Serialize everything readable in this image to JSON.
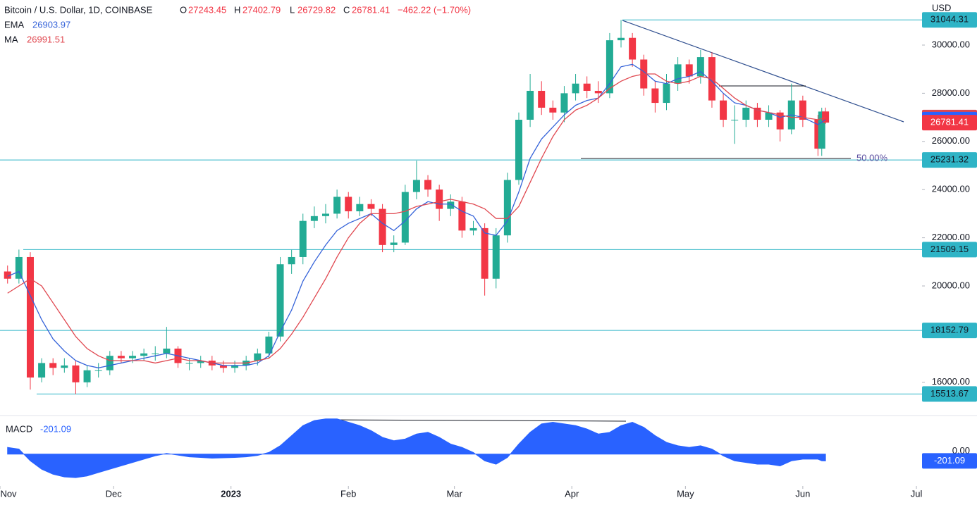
{
  "chart_data": [
    {
      "type": "candlestick",
      "title": "Bitcoin / U.S. Dollar, 1D, COINBASE",
      "ohlc_labels": [
        "O",
        "H",
        "L",
        "C"
      ],
      "change": "−462.22 (−1.70%)",
      "currency": "USD",
      "annotation": "50.00%",
      "colors": {
        "up": "#22ab94",
        "down": "#f23645"
      },
      "x": [
        2,
        5,
        8,
        11,
        14,
        17,
        20,
        23,
        26,
        29,
        32,
        35,
        38,
        41,
        44,
        47,
        50,
        53,
        56,
        59,
        62,
        65,
        68,
        71,
        74,
        77,
        80,
        83,
        86,
        89,
        92,
        95,
        98,
        101,
        104,
        107,
        110,
        113,
        116,
        119,
        122,
        125,
        128,
        131,
        134,
        137,
        140,
        143,
        146,
        149,
        152,
        155,
        158,
        161,
        164,
        167,
        170,
        173,
        176,
        179,
        182,
        185,
        188,
        191,
        194,
        197,
        200,
        203,
        206,
        209,
        212,
        216,
        217,
        218
      ],
      "open": [
        20600,
        20300,
        21200,
        16200,
        16800,
        16600,
        16700,
        16000,
        16500,
        16500,
        17100,
        17000,
        17100,
        17200,
        17200,
        17400,
        16800,
        16800,
        16900,
        16700,
        16600,
        16700,
        16900,
        17200,
        17900,
        20900,
        21200,
        22700,
        22900,
        23000,
        23700,
        23100,
        23400,
        23200,
        21700,
        21800,
        23900,
        24400,
        24000,
        23200,
        23500,
        22300,
        22400,
        20300,
        22100,
        24400,
        26900,
        28100,
        27400,
        27200,
        28000,
        28400,
        28100,
        28000,
        30200,
        30300,
        29400,
        28200,
        27600,
        28400,
        29200,
        28700,
        29500,
        27700,
        26900,
        26900,
        27400,
        26900,
        27200,
        26500,
        27700,
        26900,
        25700,
        27243.45
      ],
      "high": [
        20850,
        21509.15,
        21400,
        17000,
        17000,
        17000,
        16900,
        16700,
        16800,
        17300,
        17300,
        17300,
        17400,
        17500,
        18300,
        17500,
        17000,
        17100,
        17100,
        16900,
        16900,
        17100,
        17400,
        18100,
        21200,
        21500,
        23000,
        23300,
        23400,
        24000,
        23900,
        23700,
        23600,
        23400,
        22100,
        24200,
        25200,
        24600,
        24200,
        23800,
        23700,
        22700,
        22600,
        22400,
        24700,
        27200,
        28800,
        28500,
        27700,
        28300,
        28800,
        28700,
        28500,
        30500,
        31044.31,
        30500,
        29600,
        28500,
        28800,
        29500,
        29400,
        29800,
        29700,
        28000,
        27500,
        27700,
        27600,
        27500,
        27300,
        28400,
        27900,
        27100,
        27400,
        27402.79
      ],
      "low": [
        20100,
        20100,
        15700,
        16000,
        16300,
        16400,
        15513.67,
        15800,
        16200,
        16300,
        16800,
        16800,
        16900,
        16900,
        17000,
        16600,
        16500,
        16600,
        16500,
        16400,
        16400,
        16500,
        16700,
        17000,
        17700,
        20500,
        20900,
        22400,
        22600,
        22800,
        22800,
        22900,
        22900,
        21400,
        21400,
        21700,
        23600,
        23700,
        22700,
        22900,
        22000,
        22100,
        19600,
        19900,
        21800,
        24200,
        26600,
        27100,
        26900,
        26800,
        27700,
        27800,
        27600,
        27800,
        29900,
        29100,
        27900,
        27200,
        27300,
        28100,
        28400,
        28400,
        27400,
        26600,
        25900,
        26600,
        26600,
        26600,
        26000,
        26300,
        26600,
        25400,
        25400,
        26729.82
      ],
      "close": [
        20300,
        21200,
        16200,
        16800,
        16600,
        16700,
        16000,
        16500,
        16500,
        17100,
        17000,
        17100,
        17200,
        17200,
        17400,
        16800,
        16800,
        16900,
        16700,
        16600,
        16700,
        16900,
        17200,
        17900,
        20900,
        21200,
        22700,
        22900,
        23000,
        23700,
        23100,
        23400,
        23200,
        21700,
        21800,
        23900,
        24400,
        24000,
        23200,
        23500,
        22300,
        22400,
        20300,
        22100,
        24400,
        26900,
        28100,
        27400,
        27200,
        28000,
        28400,
        28100,
        28000,
        30200,
        30300,
        29400,
        28200,
        27600,
        28400,
        29200,
        28700,
        29500,
        27700,
        26900,
        26900,
        27400,
        26900,
        27200,
        26500,
        27700,
        26900,
        25700,
        27240,
        26781.41
      ],
      "series": [
        {
          "name": "EMA",
          "color": "#3563d9",
          "values": [
            20400,
            20600,
            19600,
            18600,
            17800,
            17300,
            16900,
            16700,
            16600,
            16700,
            16800,
            16900,
            17000,
            17100,
            17200,
            17100,
            17000,
            16900,
            16800,
            16700,
            16700,
            16700,
            16800,
            17100,
            18100,
            19000,
            20200,
            21000,
            21700,
            22300,
            22600,
            22800,
            23000,
            22600,
            22300,
            22700,
            23200,
            23500,
            23400,
            23400,
            23100,
            22900,
            22200,
            22100,
            22700,
            23900,
            25300,
            26100,
            26600,
            27100,
            27500,
            27700,
            27800,
            28400,
            29100,
            29200,
            28900,
            28500,
            28400,
            28600,
            28700,
            28900,
            28500,
            28000,
            27600,
            27500,
            27300,
            27200,
            27000,
            27100,
            27000,
            26700,
            26800,
            26903.97
          ]
        },
        {
          "name": "MA",
          "color": "#e0474f",
          "values": [
            19700,
            20000,
            20300,
            20000,
            19300,
            18600,
            17900,
            17400,
            17100,
            16900,
            16900,
            16900,
            16900,
            16800,
            16900,
            17000,
            16900,
            16900,
            16800,
            16800,
            16800,
            16800,
            16900,
            17000,
            17400,
            18000,
            18700,
            19500,
            20300,
            21200,
            22000,
            22600,
            23000,
            23000,
            23000,
            23100,
            23300,
            23400,
            23500,
            23600,
            23500,
            23400,
            23200,
            22800,
            22800,
            23300,
            24300,
            25300,
            26200,
            26900,
            27300,
            27500,
            27800,
            28200,
            28500,
            28700,
            28800,
            28800,
            28500,
            28400,
            28500,
            28700,
            28600,
            28200,
            27800,
            27500,
            27300,
            27200,
            27100,
            27000,
            27000,
            26900,
            26950,
            26991.51
          ]
        }
      ],
      "levels": [
        31044.31,
        25231.32,
        21509.15,
        18152.79,
        15513.67
      ],
      "level_color": "#2fb4c6",
      "xlim": [
        0,
        258
      ],
      "xticks": [
        {
          "value": 0,
          "label": "Nov"
        },
        {
          "value": 30,
          "label": "Dec"
        },
        {
          "value": 61,
          "label": "2023"
        },
        {
          "value": 92,
          "label": "Feb"
        },
        {
          "value": 120,
          "label": "Mar"
        },
        {
          "value": 151,
          "label": "Apr"
        },
        {
          "value": 181,
          "label": "May"
        },
        {
          "value": 212,
          "label": "Jun"
        },
        {
          "value": 242,
          "label": "Jul"
        }
      ],
      "ylim": [
        14620,
        31871
      ],
      "yticks": [
        {
          "value": 16000,
          "label": "16000.00"
        },
        {
          "value": 18000,
          "label": "18000.00"
        },
        {
          "value": 20000,
          "label": "20000.00"
        },
        {
          "value": 22000,
          "label": "22000.00"
        },
        {
          "value": 24000,
          "label": "24000.00"
        },
        {
          "value": 26000,
          "label": "26000.00"
        },
        {
          "value": 28000,
          "label": "28000.00"
        },
        {
          "value": 30000,
          "label": "30000.00"
        }
      ]
    },
    {
      "type": "area",
      "title": "MACD",
      "color": "#2962ff",
      "values": [
        200,
        150,
        -200,
        -450,
        -600,
        -680,
        -700,
        -650,
        -550,
        -450,
        -350,
        -250,
        -150,
        -50,
        20,
        -30,
        -80,
        -100,
        -120,
        -110,
        -100,
        -80,
        -40,
        50,
        250,
        550,
        850,
        1000,
        1050,
        1050,
        950,
        850,
        700,
        500,
        400,
        450,
        600,
        650,
        500,
        300,
        200,
        50,
        -200,
        -300,
        -100,
        300,
        650,
        900,
        950,
        900,
        850,
        750,
        600,
        650,
        850,
        950,
        800,
        550,
        350,
        250,
        200,
        250,
        150,
        -50,
        -200,
        -250,
        -300,
        -300,
        -350,
        -200,
        -150,
        -150,
        -200,
        -201.09
      ],
      "ylim": [
        -950,
        1150
      ],
      "yticks": [
        {
          "value": 0,
          "label": "0.00"
        }
      ]
    }
  ]
}
